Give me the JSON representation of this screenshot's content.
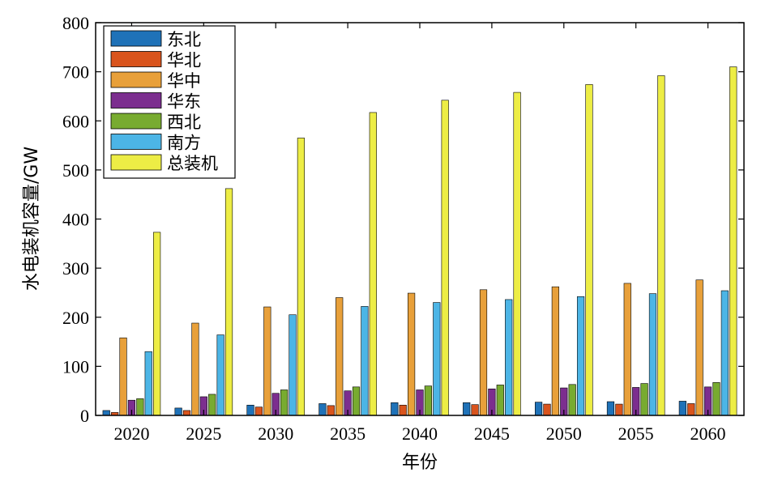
{
  "chart_data": {
    "type": "bar",
    "xlabel": "年份",
    "ylabel": "水电装机容量/GW",
    "ylim": [
      0,
      800
    ],
    "yticks": [
      0,
      100,
      200,
      300,
      400,
      500,
      600,
      700,
      800
    ],
    "categories": [
      "2020",
      "2025",
      "2030",
      "2035",
      "2040",
      "2045",
      "2050",
      "2055",
      "2060"
    ],
    "legend_position": "top-left",
    "grid": false,
    "series": [
      {
        "name": "东北",
        "color": "#1f72b8",
        "values": [
          10,
          15,
          21,
          24,
          26,
          26,
          27,
          28,
          29
        ]
      },
      {
        "name": "华北",
        "color": "#d9541d",
        "values": [
          6,
          10,
          17,
          20,
          21,
          22,
          23,
          23,
          24
        ]
      },
      {
        "name": "华中",
        "color": "#e8a03a",
        "values": [
          158,
          188,
          221,
          240,
          249,
          256,
          262,
          269,
          276
        ]
      },
      {
        "name": "华东",
        "color": "#7c2e8f",
        "values": [
          31,
          38,
          45,
          50,
          52,
          54,
          56,
          57,
          58
        ]
      },
      {
        "name": "西北",
        "color": "#78ab30",
        "values": [
          34,
          43,
          52,
          58,
          60,
          62,
          63,
          65,
          67
        ]
      },
      {
        "name": "南方",
        "color": "#4cb5e6",
        "values": [
          130,
          164,
          205,
          222,
          230,
          236,
          242,
          248,
          254
        ]
      },
      {
        "name": "总装机",
        "color": "#eded45",
        "values": [
          373,
          462,
          565,
          617,
          642,
          658,
          674,
          692,
          710
        ]
      }
    ]
  }
}
